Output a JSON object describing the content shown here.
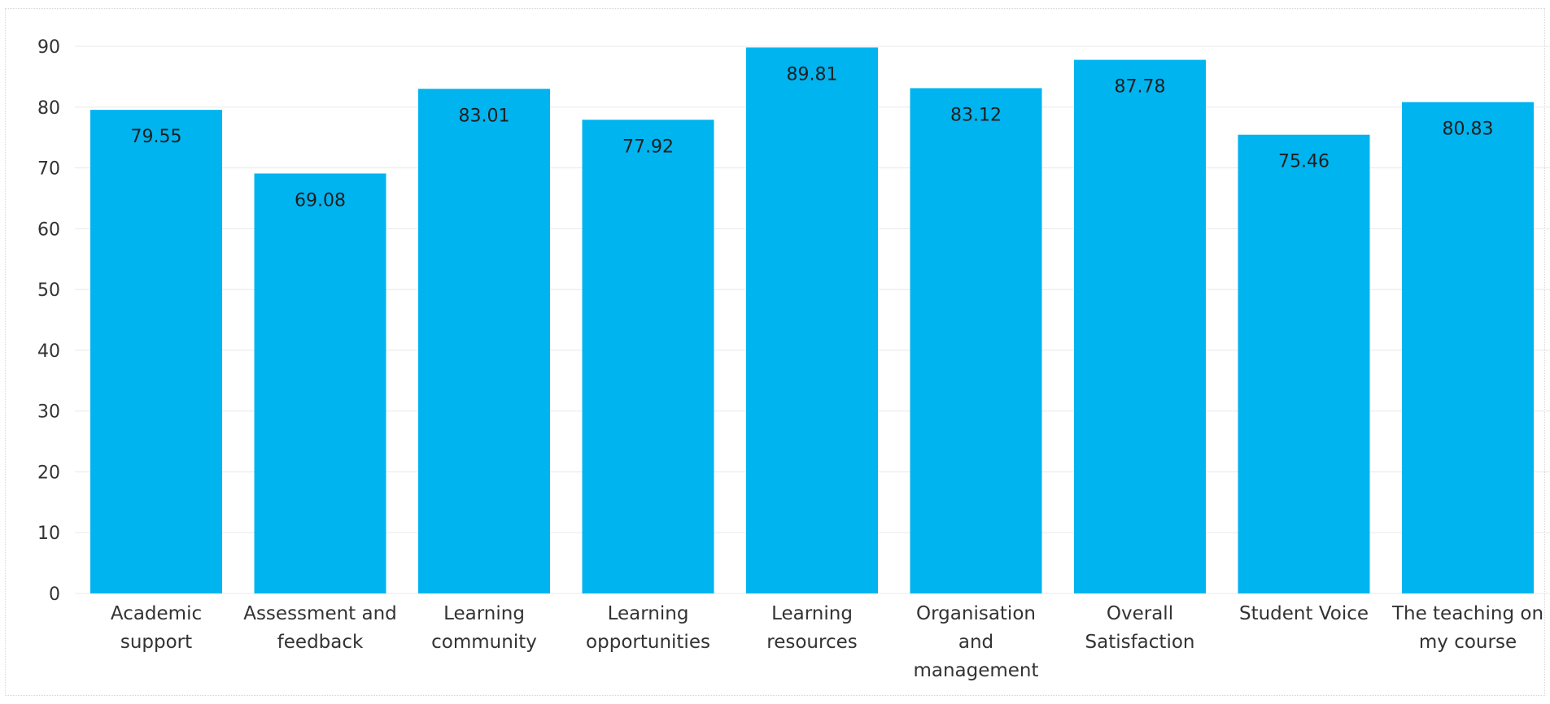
{
  "chart_data": {
    "type": "bar",
    "categories": [
      [
        "Academic",
        "support"
      ],
      [
        "Assessment and",
        "feedback"
      ],
      [
        "Learning",
        "community"
      ],
      [
        "Learning",
        "opportunities"
      ],
      [
        "Learning",
        "resources"
      ],
      [
        "Organisation",
        "and",
        "management"
      ],
      [
        "Overall",
        "Satisfaction"
      ],
      [
        "Student Voice"
      ],
      [
        "The teaching on",
        "my course"
      ]
    ],
    "values": [
      79.55,
      69.08,
      83.01,
      77.92,
      89.81,
      83.12,
      87.78,
      75.46,
      80.83
    ],
    "data_labels": [
      "79.55",
      "69.08",
      "83.01",
      "77.92",
      "89.81",
      "83.12",
      "87.78",
      "75.46",
      "80.83"
    ],
    "y_ticks": [
      0,
      10,
      20,
      30,
      40,
      50,
      60,
      70,
      80,
      90
    ],
    "ylim": [
      0,
      90
    ],
    "grid": true,
    "bar_color": "#00b4ef",
    "title": "",
    "xlabel": "",
    "ylabel": ""
  }
}
